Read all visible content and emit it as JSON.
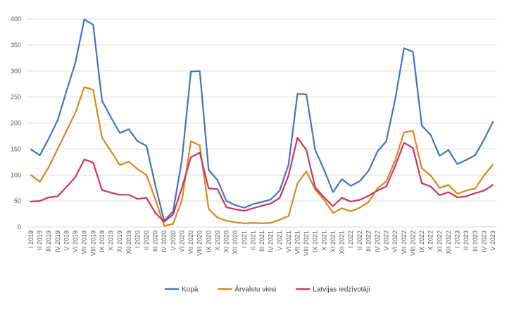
{
  "chart_data": {
    "type": "line",
    "title": "",
    "xlabel": "",
    "ylabel": "",
    "ylim": [
      0,
      400
    ],
    "yticks": [
      0,
      50,
      100,
      150,
      200,
      250,
      300,
      350,
      400
    ],
    "grid": true,
    "legend_position": "bottom",
    "categories": [
      "I 2019",
      "II 2019",
      "III 2019",
      "IV 2019",
      "V 2019",
      "VI 2019",
      "VII 2019",
      "VIII 2019",
      "IX 2019",
      "X 2019",
      "XI 2019",
      "XII 2019",
      "I 2020",
      "II 2020",
      "III 2020",
      "IV 2020",
      "V 2020",
      "VI 2020",
      "VII 2020",
      "VIII 2020",
      "IX 2020",
      "X 2020",
      "XI 2020",
      "XII 2020",
      "I 2021",
      "II 2021",
      "III 2021",
      "IV 2021",
      "V 2021",
      "VI 2021",
      "VII 2021",
      "VIII 2021",
      "IX 2021",
      "X 2021",
      "XI 2021",
      "XII 2021",
      "I 2022",
      "II 2022",
      "III 2022",
      "IV 2022",
      "V 2022",
      "VI 2022",
      "VII 2022",
      "VIII 2022",
      "IX 2022",
      "X 2022",
      "XI 2022",
      "XII 2022",
      "I 2023",
      "II 2023",
      "III 2023",
      "IV 2023",
      "V 2023"
    ],
    "series": [
      {
        "name": "Kopā",
        "color": "#4472C4",
        "values": [
          149,
          138,
          170,
          205,
          262,
          316,
          399,
          389,
          243,
          211,
          181,
          188,
          165,
          156,
          80,
          12,
          30,
          130,
          299,
          300,
          110,
          90,
          50,
          42,
          37,
          44,
          48,
          53,
          70,
          120,
          256,
          255,
          148,
          110,
          67,
          92,
          79,
          88,
          108,
          145,
          165,
          245,
          344,
          337,
          195,
          177,
          137,
          148,
          121,
          129,
          138,
          168,
          202
        ]
      },
      {
        "name": "Ārvalstu viesi",
        "color": "#D4891E",
        "values": [
          100,
          87,
          115,
          150,
          185,
          220,
          269,
          264,
          172,
          146,
          119,
          126,
          111,
          100,
          54,
          2,
          6,
          52,
          165,
          157,
          35,
          18,
          12,
          9,
          7,
          8,
          7,
          8,
          14,
          21,
          84,
          107,
          72,
          52,
          27,
          36,
          30,
          37,
          48,
          74,
          88,
          128,
          182,
          185,
          113,
          99,
          75,
          81,
          64,
          70,
          74,
          99,
          120
        ]
      },
      {
        "name": "Latvijas iedzīvotāji",
        "color": "#C8375F",
        "values": [
          49,
          50,
          57,
          59,
          77,
          96,
          130,
          124,
          71,
          66,
          62,
          62,
          54,
          56,
          27,
          10,
          24,
          76,
          134,
          143,
          74,
          73,
          38,
          34,
          31,
          36,
          41,
          45,
          56,
          99,
          172,
          148,
          76,
          57,
          40,
          56,
          49,
          52,
          60,
          70,
          78,
          117,
          162,
          152,
          84,
          78,
          61,
          67,
          57,
          59,
          65,
          70,
          81
        ]
      }
    ]
  }
}
